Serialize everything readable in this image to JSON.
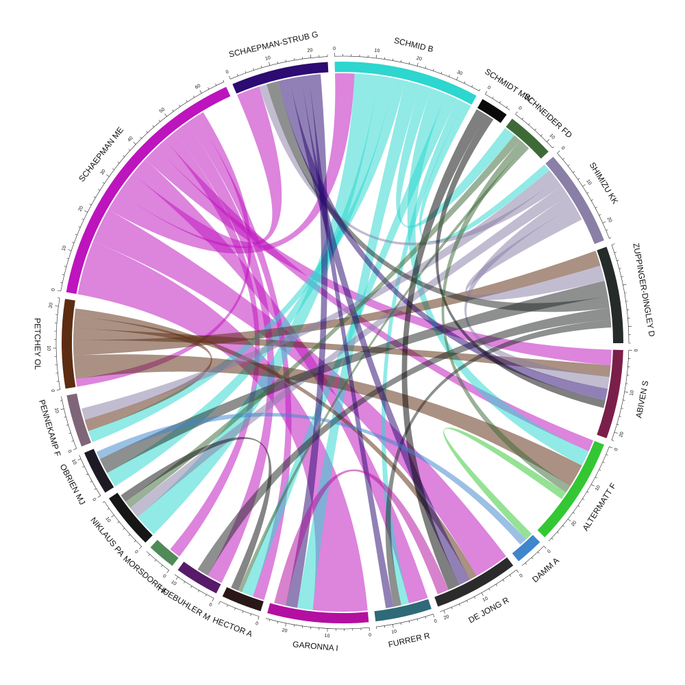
{
  "chart_data": {
    "type": "chord",
    "sectors": [
      {
        "name": "SCHMID B",
        "value": 36,
        "color": "#2dd6cf",
        "ticks": [
          0,
          10,
          20,
          30
        ]
      },
      {
        "name": "SCHMIDT MW",
        "value": 7,
        "color": "#0a0a0a",
        "ticks": [
          0
        ]
      },
      {
        "name": "SCHNEIDER FD",
        "value": 12,
        "color": "#3e6a38",
        "ticks": [
          0,
          10
        ]
      },
      {
        "name": "SHIMIZU KK",
        "value": 24,
        "color": "#8a7fa6",
        "ticks": [
          0,
          10,
          20
        ]
      },
      {
        "name": "ZUPPINGER-DINGLEY D",
        "value": 24,
        "color": "#252b28",
        "ticks": []
      },
      {
        "name": "ABIVEN S",
        "value": 22,
        "color": "#7a1f4a",
        "ticks": [
          0,
          10,
          20
        ]
      },
      {
        "name": "ALTERMATT F",
        "value": 27,
        "color": "#33c733",
        "ticks": [
          0,
          10,
          20
        ]
      },
      {
        "name": "DAMM A",
        "value": 7,
        "color": "#3f86cc",
        "ticks": [
          0
        ]
      },
      {
        "name": "DE JONG R",
        "value": 21,
        "color": "#2b2b2b",
        "ticks": [
          0,
          10,
          20
        ]
      },
      {
        "name": "FURRER R",
        "value": 14,
        "color": "#2e6a78",
        "ticks": [
          0,
          10
        ]
      },
      {
        "name": "GARONNA I",
        "value": 25,
        "color": "#b30fa0",
        "ticks": [
          0,
          10,
          20
        ]
      },
      {
        "name": "HECTOR A",
        "value": 10,
        "color": "#2a1818",
        "ticks": [
          0
        ]
      },
      {
        "name": "HUEBUHLER M",
        "value": 11,
        "color": "#571a6a",
        "ticks": [
          0,
          10
        ]
      },
      {
        "name": "MORSDORF F",
        "value": 7,
        "color": "#4f8a58",
        "ticks": [
          0
        ]
      },
      {
        "name": "NIKLAUS PA",
        "value": 14,
        "color": "#161616",
        "ticks": [
          0,
          10
        ]
      },
      {
        "name": "OBRIEN MJ",
        "value": 11,
        "color": "#1d1a24",
        "ticks": [
          0,
          10
        ]
      },
      {
        "name": "PENNEKAMP F",
        "value": 13,
        "color": "#7e6678",
        "ticks": [
          0,
          10
        ]
      },
      {
        "name": "PETCHEY OL",
        "value": 22,
        "color": "#5c2d12",
        "ticks": [
          0,
          10,
          20
        ]
      },
      {
        "name": "SCHAEPMAN ME",
        "value": 66,
        "color": "#bd14bd",
        "ticks": [
          0,
          10,
          20,
          30,
          40,
          50,
          60
        ]
      },
      {
        "name": "SCHAEPMAN-STRUB G",
        "value": 24,
        "color": "#2c0b72",
        "ticks": [
          0,
          10,
          20
        ]
      }
    ],
    "links": [
      {
        "from": "SCHAEPMAN ME",
        "to": "GARONNA I",
        "value": 14
      },
      {
        "from": "SCHAEPMAN ME",
        "to": "DE JONG R",
        "value": 9
      },
      {
        "from": "SCHAEPMAN ME",
        "to": "SCHMID B",
        "value": 5
      },
      {
        "from": "SCHAEPMAN ME",
        "to": "SCHAEPMAN-STRUB G",
        "value": 6
      },
      {
        "from": "SCHAEPMAN ME",
        "to": "FURRER R",
        "value": 5
      },
      {
        "from": "SCHAEPMAN ME",
        "to": "ABIVEN S",
        "value": 4
      },
      {
        "from": "SCHAEPMAN ME",
        "to": "ALTERMATT F",
        "value": 3
      },
      {
        "from": "SCHAEPMAN ME",
        "to": "MORSDORF F",
        "value": 3
      },
      {
        "from": "SCHAEPMAN ME",
        "to": "HUEBUHLER M",
        "value": 4
      },
      {
        "from": "SCHAEPMAN ME",
        "to": "HECTOR A",
        "value": 3
      },
      {
        "from": "SCHAEPMAN ME",
        "to": "PETCHEY OL",
        "value": 2
      },
      {
        "from": "SCHAEPMAN ME",
        "to": "SCHIMZU KK",
        "value": 0
      },
      {
        "from": "SCHMID B",
        "to": "NIKLAUS PA",
        "value": 6
      },
      {
        "from": "SCHMID B",
        "to": "OBRIEN MJ",
        "value": 4
      },
      {
        "from": "SCHMID B",
        "to": "PENNEKAMP F",
        "value": 3
      },
      {
        "from": "SCHMID B",
        "to": "GARONNA I",
        "value": 4
      },
      {
        "from": "SCHMID B",
        "to": "SCHNEIDER FD",
        "value": 3
      },
      {
        "from": "SCHMID B",
        "to": "ALTERMATT F",
        "value": 4
      },
      {
        "from": "SCHMID B",
        "to": "HECTOR A",
        "value": 3
      },
      {
        "from": "SCHMID B",
        "to": "FURRER R",
        "value": 2
      },
      {
        "from": "SCHMID B",
        "to": "SHIMIZU KK",
        "value": 2
      },
      {
        "from": "PETCHEY OL",
        "to": "ALTERMATT F",
        "value": 6
      },
      {
        "from": "PETCHEY OL",
        "to": "ZUPPINGER-DINGLEY D",
        "value": 4
      },
      {
        "from": "PETCHEY OL",
        "to": "ABIVEN S",
        "value": 3
      },
      {
        "from": "PETCHEY OL",
        "to": "PENNEKAMP F",
        "value": 3
      },
      {
        "from": "PETCHEY OL",
        "to": "DE JONG R",
        "value": 2
      },
      {
        "from": "SHIMIZU KK",
        "to": "PENNEKAMP F",
        "value": 3
      },
      {
        "from": "SHIMIZU KK",
        "to": "SCHAEPMAN-STRUB G",
        "value": 2
      },
      {
        "from": "SHIMIZU KK",
        "to": "NIKLAUS PA",
        "value": 3
      },
      {
        "from": "SHIMIZU KK",
        "to": "ABIVEN S",
        "value": 3
      },
      {
        "from": "SHIMIZU KK",
        "to": "ZUPPINGER-DINGLEY D",
        "value": 4
      },
      {
        "from": "ZUPPINGER-DINGLEY D",
        "to": "OBRIEN MJ",
        "value": 4
      },
      {
        "from": "ZUPPINGER-DINGLEY D",
        "to": "SCHAEPMAN-STRUB G",
        "value": 3
      },
      {
        "from": "ZUPPINGER-DINGLEY D",
        "to": "HUEBUHLER M",
        "value": 3
      },
      {
        "from": "ZUPPINGER-DINGLEY D",
        "to": "FURRER R",
        "value": 2
      },
      {
        "from": "SCHAEPMAN-STRUB G",
        "to": "ABIVEN S",
        "value": 3
      },
      {
        "from": "SCHAEPMAN-STRUB G",
        "to": "DE JONG R",
        "value": 3
      },
      {
        "from": "SCHAEPMAN-STRUB G",
        "to": "FURRER R",
        "value": 2
      },
      {
        "from": "SCHAEPMAN-STRUB G",
        "to": "GARONNA I",
        "value": 3
      },
      {
        "from": "SCHMIDT MW",
        "to": "DE JONG R",
        "value": 3
      },
      {
        "from": "SCHMIDT MW",
        "to": "ABIVEN S",
        "value": 2
      },
      {
        "from": "SCHNEIDER FD",
        "to": "NIKLAUS PA",
        "value": 2
      },
      {
        "from": "SCHNEIDER FD",
        "to": "ALTERMATT F",
        "value": 2
      },
      {
        "from": "SCHNEIDER FD",
        "to": "HECTOR A",
        "value": 1
      },
      {
        "from": "ALTERMATT F",
        "to": "DAMM A",
        "value": 2
      },
      {
        "from": "DAMM A",
        "to": "OBRIEN MJ",
        "value": 2
      },
      {
        "from": "NIKLAUS PA",
        "to": "HECTOR A",
        "value": 2
      },
      {
        "from": "GARONNA I",
        "to": "DE JONG R",
        "value": 3
      }
    ]
  }
}
